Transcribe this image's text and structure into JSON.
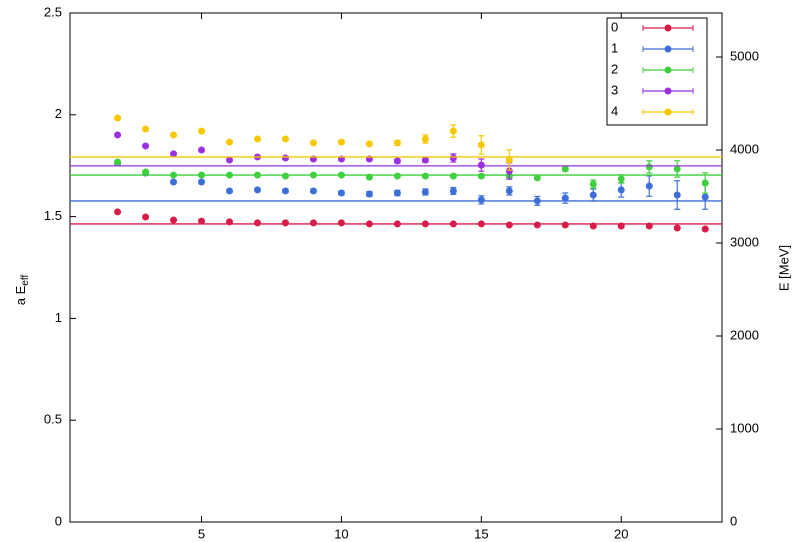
{
  "chart_data": {
    "type": "scatter",
    "ylabel": {
      "main": "a E",
      "sub": "eff"
    },
    "y2label": "E [MeV]",
    "x": [
      2,
      3,
      4,
      5,
      6,
      7,
      8,
      9,
      10,
      11,
      12,
      13,
      14,
      15,
      16,
      17,
      18,
      19,
      20,
      21,
      22,
      23
    ],
    "xlim": [
      0.3,
      23.6
    ],
    "xticks": [
      5,
      10,
      15,
      20
    ],
    "ylim": [
      0,
      2.5
    ],
    "yticks": [
      0,
      0.5,
      1,
      1.5,
      2,
      2.5
    ],
    "y2lim": [
      0,
      5473
    ],
    "y2ticks": [
      0,
      1000,
      2000,
      3000,
      4000,
      5000
    ],
    "legend": "top-right",
    "series": [
      {
        "name": "0",
        "color": "#d81b47",
        "fit": 1.464,
        "values": [
          1.523,
          1.498,
          1.483,
          1.478,
          1.474,
          1.469,
          1.469,
          1.469,
          1.469,
          1.464,
          1.464,
          1.464,
          1.464,
          1.464,
          1.459,
          1.459,
          1.459,
          1.454,
          1.454,
          1.454,
          1.444,
          1.439
        ],
        "errors": [
          0.004,
          0.004,
          0.004,
          0.004,
          0.004,
          0.004,
          0.004,
          0.005,
          0.005,
          0.005,
          0.005,
          0.005,
          0.005,
          0.005,
          0.005,
          0.006,
          0.006,
          0.006,
          0.006,
          0.007,
          0.007,
          0.008
        ]
      },
      {
        "name": "1",
        "color": "#3d6fd6",
        "fit": 1.577,
        "values": [
          1.763,
          1.714,
          1.67,
          1.67,
          1.626,
          1.631,
          1.626,
          1.626,
          1.616,
          1.611,
          1.616,
          1.621,
          1.626,
          1.582,
          1.626,
          1.577,
          1.591,
          1.606,
          1.631,
          1.65,
          1.606,
          1.596
        ],
        "errors": [
          0.008,
          0.008,
          0.008,
          0.008,
          0.008,
          0.008,
          0.009,
          0.01,
          0.01,
          0.012,
          0.013,
          0.015,
          0.017,
          0.02,
          0.02,
          0.022,
          0.025,
          0.03,
          0.035,
          0.05,
          0.07,
          0.06
        ]
      },
      {
        "name": "2",
        "color": "#3fcf3f",
        "fit": 1.704,
        "values": [
          1.768,
          1.719,
          1.704,
          1.704,
          1.704,
          1.704,
          1.699,
          1.704,
          1.704,
          1.694,
          1.699,
          1.699,
          1.699,
          1.699,
          1.699,
          1.69,
          1.734,
          1.66,
          1.685,
          1.744,
          1.734,
          1.665
        ],
        "errors": [
          0.004,
          0.004,
          0.004,
          0.004,
          0.004,
          0.004,
          0.004,
          0.004,
          0.005,
          0.005,
          0.005,
          0.005,
          0.006,
          0.006,
          0.007,
          0.008,
          0.01,
          0.02,
          0.02,
          0.03,
          0.04,
          0.05
        ]
      },
      {
        "name": "3",
        "color": "#9b30e0",
        "fit": 1.749,
        "values": [
          1.901,
          1.847,
          1.808,
          1.827,
          1.778,
          1.793,
          1.788,
          1.783,
          1.783,
          1.783,
          1.773,
          1.778,
          1.788,
          1.753,
          1.724,
          null,
          null,
          null,
          null,
          null,
          null,
          null
        ],
        "errors": [
          0.005,
          0.005,
          0.005,
          0.006,
          0.006,
          0.007,
          0.007,
          0.008,
          0.008,
          0.009,
          0.01,
          0.012,
          0.02,
          0.03,
          0.04,
          null,
          null,
          null,
          null,
          null,
          null,
          null
        ]
      },
      {
        "name": "4",
        "color": "#f5c800",
        "fit": 1.793,
        "values": [
          1.984,
          1.93,
          1.901,
          1.92,
          1.866,
          1.881,
          1.881,
          1.862,
          1.866,
          1.857,
          1.862,
          1.881,
          1.92,
          1.852,
          1.778,
          null,
          null,
          null,
          null,
          null,
          null,
          null
        ],
        "errors": [
          0.005,
          0.005,
          0.006,
          0.006,
          0.007,
          0.007,
          0.008,
          0.008,
          0.009,
          0.01,
          0.012,
          0.02,
          0.03,
          0.045,
          0.05,
          null,
          null,
          null,
          null,
          null,
          null,
          null
        ]
      }
    ]
  }
}
